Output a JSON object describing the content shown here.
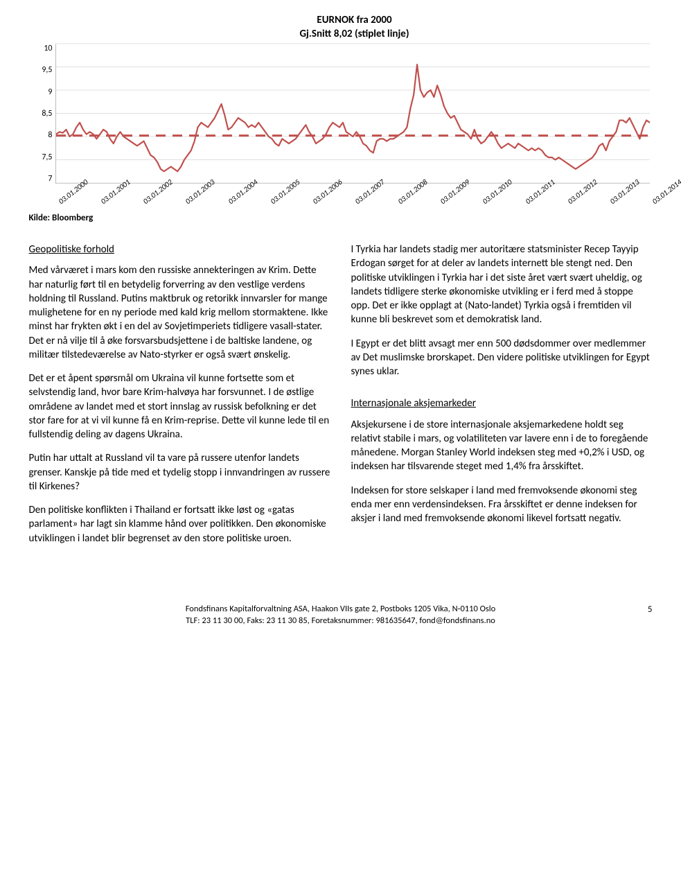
{
  "chart": {
    "title1": "EURNOK fra 2000",
    "title2": "Gj.Snitt 8,02 (stiplet linje)",
    "type": "line",
    "ylim": [
      7,
      10
    ],
    "ytick_step": 0.5,
    "yticks": [
      "10",
      "9,5",
      "9",
      "8,5",
      "8",
      "7,5",
      "7"
    ],
    "xticks": [
      "03.01.2000",
      "03.01.2001",
      "03.01.2002",
      "03.01.2003",
      "03.01.2004",
      "03.01.2005",
      "03.01.2006",
      "03.01.2007",
      "03.01.2008",
      "03.01.2009",
      "03.01.2010",
      "03.01.2011",
      "03.01.2012",
      "03.01.2013",
      "03.01.2014"
    ],
    "mean_value": 8.02,
    "mean_style": {
      "color": "#c0504d",
      "dash": "14,10",
      "width": 3
    },
    "series": {
      "color": "#c0504d",
      "width": 2.2,
      "values": [
        8.05,
        8.1,
        8.08,
        8.15,
        8.0,
        8.05,
        8.2,
        8.3,
        8.15,
        8.05,
        8.1,
        8.05,
        7.95,
        8.05,
        8.15,
        8.1,
        7.95,
        7.85,
        8.0,
        8.1,
        8.0,
        7.95,
        7.9,
        7.85,
        7.8,
        7.85,
        7.9,
        7.75,
        7.6,
        7.55,
        7.45,
        7.3,
        7.25,
        7.3,
        7.35,
        7.3,
        7.25,
        7.35,
        7.5,
        7.6,
        7.7,
        7.9,
        8.2,
        8.3,
        8.25,
        8.2,
        8.3,
        8.4,
        8.55,
        8.7,
        8.45,
        8.15,
        8.2,
        8.3,
        8.4,
        8.35,
        8.3,
        8.2,
        8.25,
        8.2,
        8.3,
        8.2,
        8.1,
        8.0,
        7.95,
        7.85,
        7.8,
        7.95,
        7.9,
        7.85,
        7.9,
        7.95,
        8.05,
        8.15,
        8.25,
        8.1,
        8.0,
        7.85,
        7.9,
        7.95,
        8.05,
        8.2,
        8.3,
        8.25,
        8.2,
        8.3,
        8.1,
        8.05,
        8.0,
        8.1,
        8.0,
        7.85,
        7.8,
        7.7,
        7.65,
        7.9,
        7.95,
        7.95,
        7.9,
        7.95,
        7.95,
        8.0,
        8.05,
        8.1,
        8.2,
        8.6,
        8.9,
        9.55,
        9.0,
        8.85,
        8.95,
        9.0,
        8.85,
        9.1,
        8.9,
        8.65,
        8.5,
        8.4,
        8.45,
        8.3,
        8.15,
        8.1,
        8.05,
        7.95,
        8.15,
        7.95,
        7.85,
        7.9,
        8.0,
        8.1,
        8.0,
        7.85,
        7.75,
        7.8,
        7.85,
        7.8,
        7.75,
        7.85,
        7.8,
        7.75,
        7.7,
        7.75,
        7.7,
        7.75,
        7.7,
        7.6,
        7.55,
        7.55,
        7.5,
        7.55,
        7.5,
        7.45,
        7.4,
        7.35,
        7.3,
        7.35,
        7.4,
        7.45,
        7.5,
        7.55,
        7.65,
        7.8,
        7.85,
        7.7,
        7.9,
        8.0,
        8.1,
        8.35,
        8.35,
        8.3,
        8.4,
        8.25,
        8.1,
        7.95,
        8.2,
        8.35,
        8.3
      ]
    },
    "grid_color": "#e0e0e0",
    "background_color": "#ffffff",
    "title_fontsize": 15,
    "tick_fontsize": 12
  },
  "kilde": "Kilde: Bloomberg",
  "left": {
    "heading": "Geopolitiske forhold",
    "p1": "Med vårværet i mars kom den russiske annekteringen av Krim. Dette har naturlig ført til en betydelig forverring av den vestlige verdens holdning til Russland. Putins maktbruk og retorikk innvarsler for mange mulighetene for en ny periode med kald krig mellom stormaktene. Ikke minst har frykten økt i en del av Sovjetimperiets tidligere vasall-stater. Det er nå vilje til å øke forsvarsbudsjettene i de baltiske landene, og militær tilstedeværelse av Nato-styrker er også svært ønskelig.",
    "p2": "Det er et åpent spørsmål om Ukraina vil kunne fortsette som et selvstendig land, hvor bare Krim-halvøya har forsvunnet. I de østlige områdene av landet med et stort innslag av russisk befolkning er det stor fare for at vi vil kunne få en Krim-reprise. Dette vil kunne lede til en fullstendig deling av dagens Ukraina.",
    "p3": "Putin har uttalt at Russland vil ta vare på russere utenfor landets grenser. Kanskje på tide med et tydelig stopp i innvandringen av russere til Kirkenes?",
    "p4": "Den politiske konflikten i Thailand er fortsatt ikke løst og «gatas parlament» har lagt sin klamme hånd over politikken. Den økonomiske utviklingen i landet blir begrenset av den store politiske uroen."
  },
  "right": {
    "p1": "I Tyrkia har landets stadig mer autoritære statsminister Recep Tayyip Erdogan sørget for at deler av landets internett ble stengt ned. Den politiske utviklingen i Tyrkia har i det siste året vært svært uheldig, og landets tidligere sterke økonomiske utvikling er i ferd med å stoppe opp. Det er ikke opplagt at (Nato-landet) Tyrkia også i fremtiden vil kunne bli beskrevet som et demokratisk land.",
    "p2": "I Egypt er det blitt avsagt mer enn 500 dødsdommer over medlemmer av Det muslimske brorskapet. Den videre politiske utviklingen for Egypt synes uklar.",
    "heading2": "Internasjonale aksjemarkeder",
    "p3": "Aksjekursene i de store internasjonale aksjemarkedene holdt seg relativt stabile i mars, og volatiliteten var lavere enn i de to foregående månedene. Morgan Stanley World indeksen steg med +0,2% i USD, og indeksen har tilsvarende steget med 1,4% fra årsskiftet.",
    "p4": "Indeksen for store selskaper i land med fremvoksende økonomi steg enda mer enn verdensindeksen. Fra årsskiftet er denne indeksen for aksjer i land med fremvoksende økonomi likevel fortsatt negativ."
  },
  "footer": {
    "line1": "Fondsfinans Kapitalforvaltning ASA, Haakon VIIs gate 2, Postboks 1205 Vika, N-0110 Oslo",
    "line2": "TLF: 23 11 30 00, Faks: 23 11 30 85, Foretaksnummer: 981635647, fond@fondsfinans.no",
    "page": "5"
  }
}
